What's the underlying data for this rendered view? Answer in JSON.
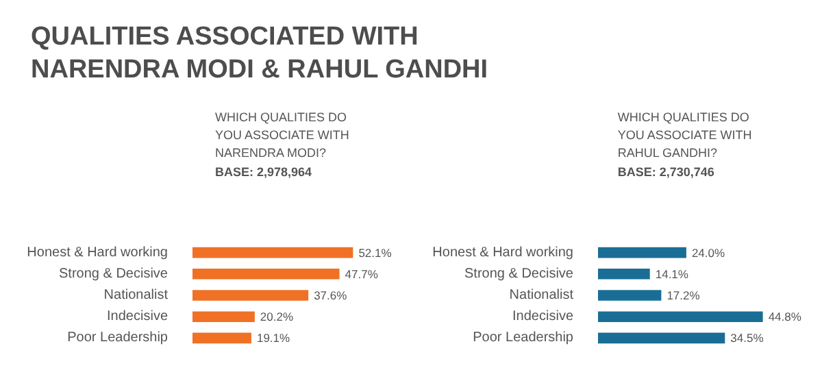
{
  "chart_data": [
    {
      "type": "bar",
      "orientation": "horizontal",
      "title": "QUALITIES ASSOCIATED WITH NARENDRA MODI & RAHUL GANDHI",
      "subtitle": "WHICH QUALITIES DO YOU ASSOCIATE WITH NARENDRA MODI?",
      "annotations": [
        "BASE: 2,978,964"
      ],
      "categories": [
        "Honest & Hard working",
        "Strong & Decisive",
        "Nationalist",
        "Indecisive",
        "Poor Leadership"
      ],
      "values": [
        52.1,
        47.7,
        37.6,
        20.2,
        19.1
      ],
      "value_labels": [
        "52.1%",
        "47.7%",
        "37.6%",
        "20.2%",
        "19.1%"
      ],
      "color": "#f07125",
      "grid": false
    },
    {
      "type": "bar",
      "orientation": "horizontal",
      "subtitle": "WHICH QUALITIES DO YOU ASSOCIATE WITH RAHUL GANDHI?",
      "annotations": [
        "BASE: 2,730,746"
      ],
      "categories": [
        "Honest & Hard working",
        "Strong & Decisive",
        "Nationalist",
        "Indecisive",
        "Poor Leadership"
      ],
      "values": [
        24.0,
        14.1,
        17.2,
        44.8,
        34.5
      ],
      "value_labels": [
        "24.0%",
        "14.1%",
        "17.2%",
        "44.8%",
        "34.5%"
      ],
      "color": "#1a6e96",
      "grid": false
    }
  ]
}
